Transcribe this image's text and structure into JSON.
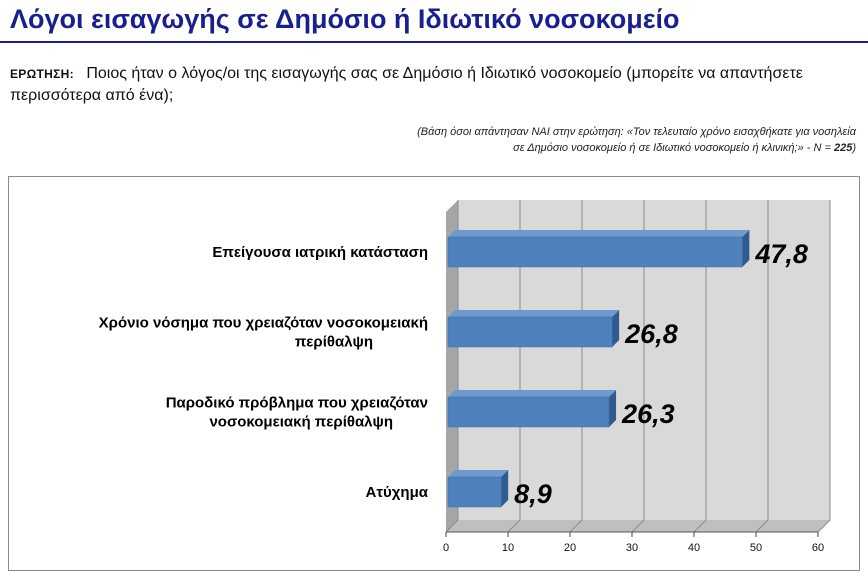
{
  "header": {
    "title": "Λόγοι εισαγωγής σε Δημόσιο ή Ιδιωτικό νοσοκομείο",
    "question_label": "ΕΡΩΤΗΣΗ:",
    "question_text": "Ποιος ήταν ο λόγος/οι της εισαγωγής σας σε Δημόσιο ή Ιδιωτικό νοσοκομείο (μπορείτε να απαντήσετε περισσότερα από ένα);",
    "basis_line1": "(Βάση όσοι απάντησαν ΝΑΙ στην ερώτηση: «Τον τελευταίο χρόνο εισαχθήκατε για νοσηλεία",
    "basis_line2": "σε Δημόσιο νοσοκομείο ή σε Ιδιωτικό νοσοκομείο ή κλινική;»  -  N = ",
    "basis_n": "225",
    "basis_close": ")"
  },
  "chart_data": {
    "type": "bar",
    "orientation": "horizontal",
    "style": "3d",
    "categories": [
      [
        "Επείγουσα ιατρική κατάσταση"
      ],
      [
        "Χρόνιο νόσημα που χρειαζόταν νοσοκομειακή",
        "περίθαλψη"
      ],
      [
        "Παροδικό πρόβλημα που χρειαζόταν",
        "νοσοκομειακή περίθαλψη"
      ],
      [
        "Ατύχημα"
      ]
    ],
    "values": [
      47.8,
      26.8,
      26.3,
      8.9
    ],
    "value_labels": [
      "47,8",
      "26,8",
      "26,3",
      "8,9"
    ],
    "xlim": [
      0,
      60
    ],
    "xticks": [
      0,
      10,
      20,
      30,
      40,
      50,
      60
    ],
    "grid": true,
    "legend": "none",
    "colors": {
      "bar_front": "#4f81bd",
      "bar_top": "#6f9ad0",
      "bar_side": "#2f5b8e",
      "wall": "#d9d9d9",
      "wall_dark": "#a6a6a6",
      "grid": "#8c8c8c"
    }
  }
}
